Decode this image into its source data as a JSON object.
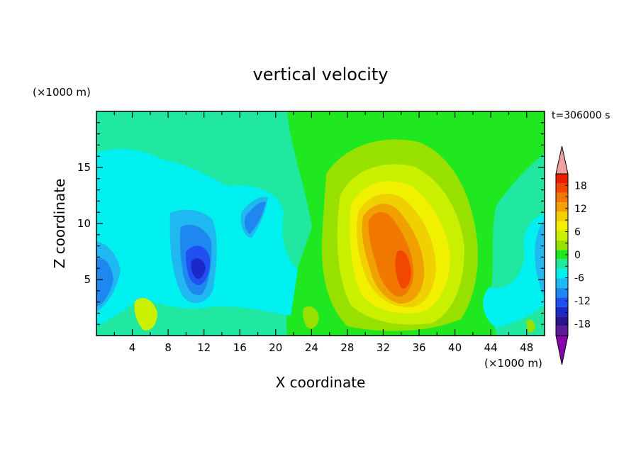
{
  "chart_data": {
    "type": "heatmap",
    "title": "vertical velocity",
    "xlabel": "X coordinate",
    "ylabel": "Z coordinate",
    "x_unit": "(×1000 m)",
    "y_unit": "(×1000 m)",
    "time_label": "t=306000 s",
    "xlim": [
      0,
      50
    ],
    "ylim": [
      0,
      20
    ],
    "x_ticks": [
      "4",
      "8",
      "12",
      "16",
      "20",
      "24",
      "28",
      "32",
      "36",
      "40",
      "44",
      "48"
    ],
    "y_ticks": [
      "5",
      "10",
      "15"
    ],
    "colorbar": {
      "levels": [
        -21,
        -18,
        -15,
        -12,
        -9,
        -6,
        -3,
        0,
        3,
        6,
        9,
        12,
        15,
        18,
        21
      ],
      "tick_labels": [
        "18",
        "12",
        "6",
        "0",
        "-6",
        "-12",
        "-18"
      ],
      "colors": [
        "#8800aa",
        "#5b1c9c",
        "#2a148c",
        "#1c28c8",
        "#2050f0",
        "#1f88f0",
        "#20b8f0",
        "#00f0f0",
        "#20e8a0",
        "#20e820",
        "#98e000",
        "#c8f000",
        "#f0f000",
        "#f0d000",
        "#f0a000",
        "#f07800",
        "#f04800",
        "#e82000",
        "#f0a0a0"
      ]
    },
    "features": [
      {
        "x": 34,
        "z": 6,
        "value": 18,
        "name": "updraft-core"
      },
      {
        "x": 33,
        "z": 10,
        "value": 12,
        "name": "updraft-upper"
      },
      {
        "x": 32,
        "z": 12,
        "value": 6,
        "name": "updraft-top"
      },
      {
        "x": 11,
        "z": 6.5,
        "value": -15,
        "name": "downdraft-core"
      },
      {
        "x": 12,
        "z": 9,
        "value": -9,
        "name": "downdraft-upper"
      },
      {
        "x": 1.5,
        "z": 5.5,
        "value": -9,
        "name": "left-downdraft"
      },
      {
        "x": 18,
        "z": 11,
        "value": -9,
        "name": "downdraft-column"
      },
      {
        "x": 48.5,
        "z": 6,
        "value": -9,
        "name": "right-downdraft"
      },
      {
        "x": 5,
        "z": 1.5,
        "value": 6,
        "name": "surface-updraft-left"
      },
      {
        "x": 24,
        "z": 1.5,
        "value": 3,
        "name": "surface-updraft-mid"
      },
      {
        "x": 48,
        "z": 1,
        "value": 3,
        "name": "surface-updraft-right"
      }
    ]
  }
}
